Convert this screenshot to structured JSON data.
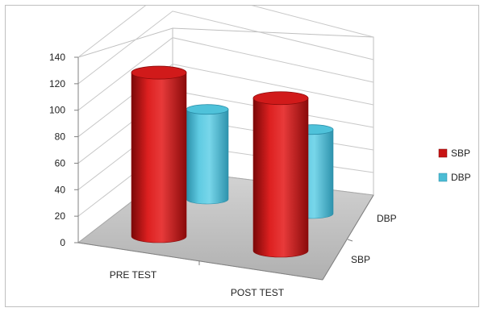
{
  "chart_data": {
    "type": "bar",
    "style": "3d-cylinder",
    "categories": [
      "PRE TEST",
      "POST TEST"
    ],
    "depth_categories": [
      "SBP",
      "DBP"
    ],
    "series": [
      {
        "name": "SBP",
        "values": [
          134,
          128
        ],
        "color": "#c81414"
      },
      {
        "name": "DBP",
        "values": [
          98,
          93
        ],
        "color": "#4bbcd4"
      }
    ],
    "ylim": [
      0,
      140
    ],
    "y_ticks": [
      "0",
      "20",
      "40",
      "60",
      "80",
      "100",
      "120",
      "140"
    ],
    "grid": true,
    "legend_position": "right"
  }
}
